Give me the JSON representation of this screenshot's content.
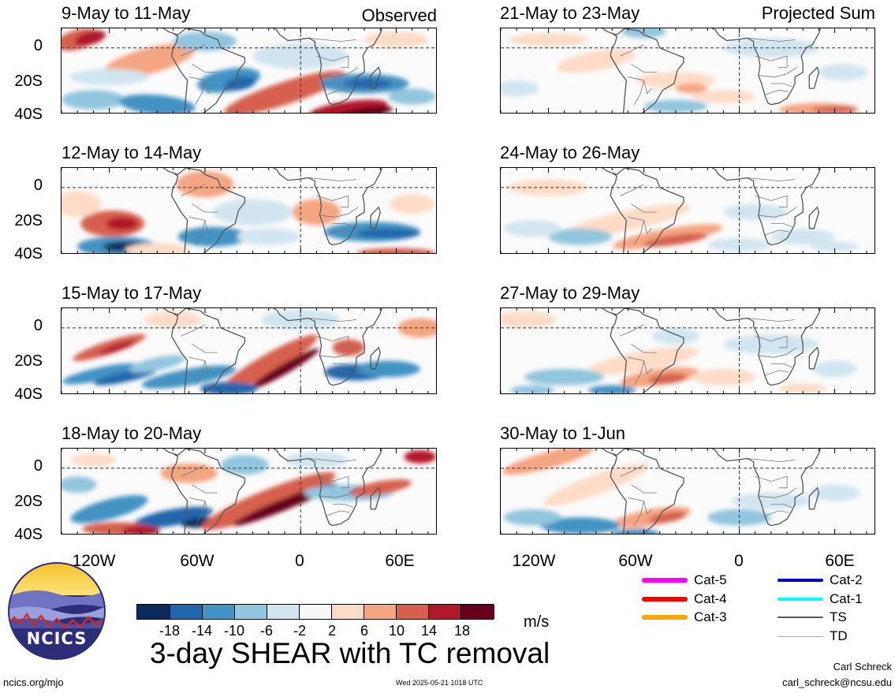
{
  "panels_left": [
    {
      "title": "9-May to 11-May"
    },
    {
      "title": "12-May to 14-May"
    },
    {
      "title": "15-May to 17-May"
    },
    {
      "title": "18-May to 20-May"
    }
  ],
  "panels_right": [
    {
      "title": "21-May to 23-May"
    },
    {
      "title": "24-May to 26-May"
    },
    {
      "title": "27-May to 29-May"
    },
    {
      "title": "30-May to 1-Jun"
    }
  ],
  "tags": {
    "observed": "Observed",
    "projected": "Projected Sum"
  },
  "lat_ticks": [
    "0",
    "20S",
    "40S"
  ],
  "lon_ticks": [
    "120W",
    "60W",
    "0",
    "60E"
  ],
  "colorbar": {
    "colors": [
      "#0c2a5c",
      "#2166ac",
      "#4393c3",
      "#92c5de",
      "#d1e5f0",
      "#f7f7f7",
      "#fddbc7",
      "#f4a582",
      "#d6604d",
      "#b2182b",
      "#67001f"
    ],
    "labels": [
      "-18",
      "-14",
      "-10",
      "-6",
      "-2",
      "2",
      "6",
      "10",
      "14",
      "18"
    ],
    "units": "m/s"
  },
  "legend": {
    "items": [
      {
        "label": "Cat-5",
        "color": "#ff00ff",
        "weight": "thick"
      },
      {
        "label": "Cat-4",
        "color": "#ff0000",
        "weight": "thick"
      },
      {
        "label": "Cat-3",
        "color": "#ffa500",
        "weight": "thick"
      },
      {
        "label": "Cat-2",
        "color": "#0000cd",
        "weight": "medium"
      },
      {
        "label": "Cat-1",
        "color": "#00ffff",
        "weight": "medium"
      },
      {
        "label": "TS",
        "color": "#555555",
        "weight": "thin"
      },
      {
        "label": "TD",
        "color": "#aaaaaa",
        "weight": "hair"
      }
    ]
  },
  "logo": {
    "text": "NCICS"
  },
  "main_title": "3-day SHEAR with TC removal",
  "footer": {
    "url": "ncics.org/mjo",
    "timestamp": "Wed 2025-05-21 1018 UTC",
    "author": "Carl Schreck",
    "email": "carl_schreck@ncsu.edu"
  }
}
